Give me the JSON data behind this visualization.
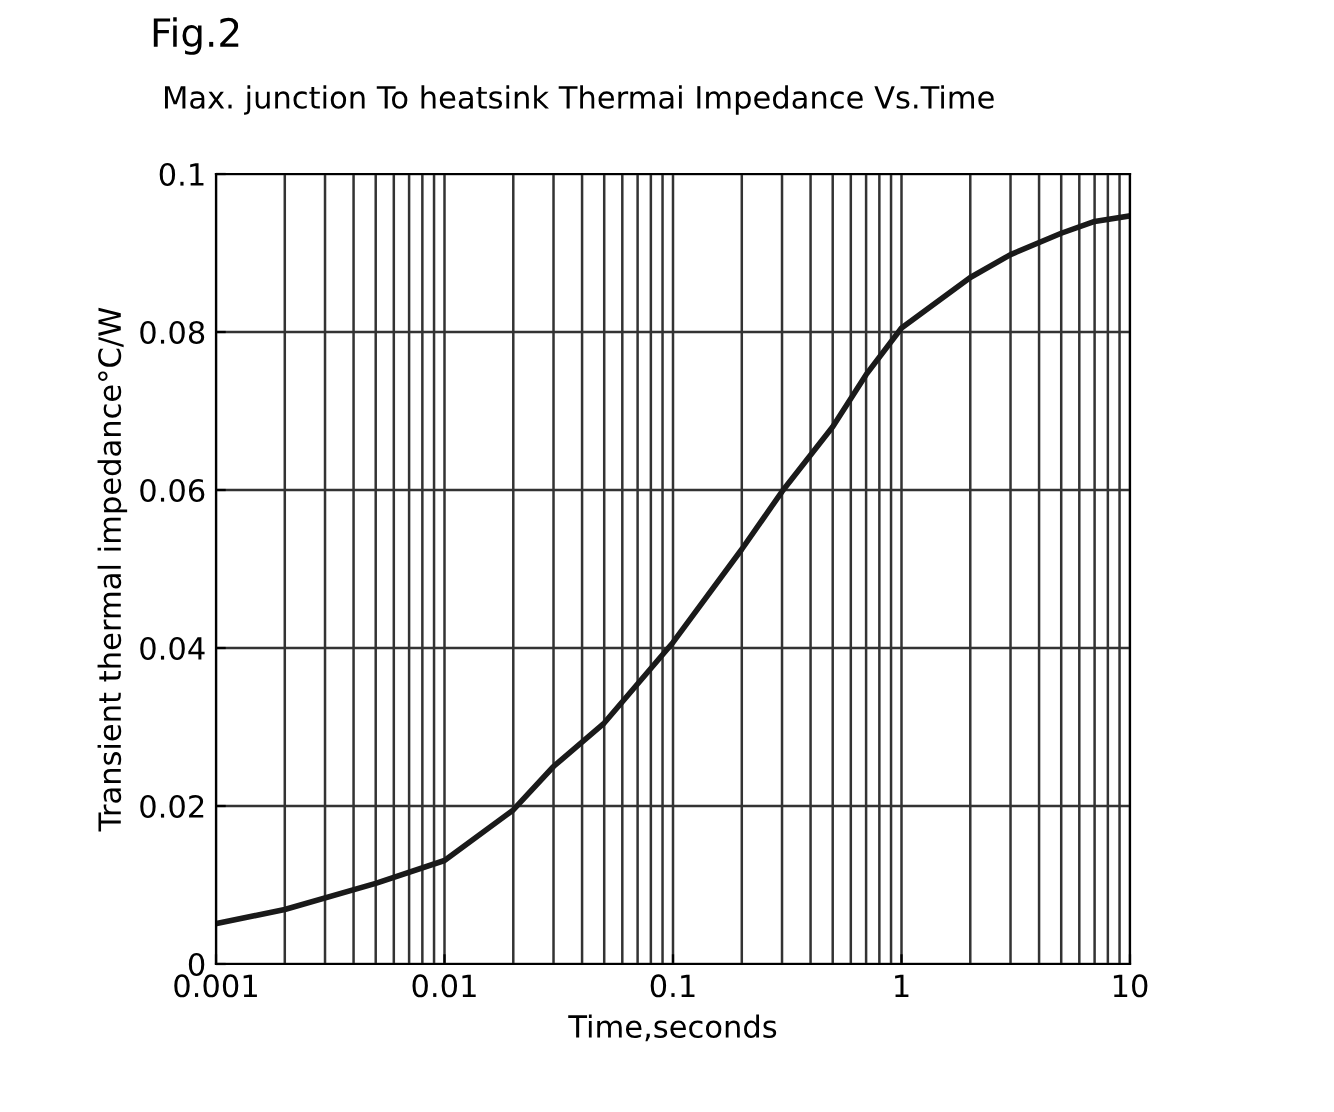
{
  "chart_data": {
    "type": "line",
    "title": "Fig.2",
    "subtitle": "Max. junction To heatsink Thermai Impedance Vs.Time",
    "xlabel": "Time,seconds",
    "ylabel": "Transient thermal impedance°C/W",
    "log": "x",
    "grid": true,
    "marker": "none",
    "line_style": "solid",
    "xlim": [
      0.001,
      10
    ],
    "xticks": [
      {
        "value": 0.001,
        "label": "0.001"
      },
      {
        "value": 0.01,
        "label": "0.01"
      },
      {
        "value": 0.1,
        "label": "0.1"
      },
      {
        "value": 1,
        "label": "1"
      },
      {
        "value": 10,
        "label": "10"
      }
    ],
    "ylim": [
      0,
      0.1
    ],
    "yticks": [
      {
        "value": 0,
        "label": "0"
      },
      {
        "value": 0.02,
        "label": "0.02"
      },
      {
        "value": 0.04,
        "label": "0.04"
      },
      {
        "value": 0.06,
        "label": "0.06"
      },
      {
        "value": 0.08,
        "label": "0.08"
      },
      {
        "value": 0.1,
        "label": "0.1"
      }
    ],
    "x": [
      0.001,
      0.002,
      0.005,
      0.01,
      0.02,
      0.03,
      0.05,
      0.1,
      0.2,
      0.3,
      0.5,
      0.7,
      1,
      2,
      3,
      5,
      7,
      10
    ],
    "series": [
      {
        "color": "#1a1a1a",
        "values": [
          0.0051,
          0.0069,
          0.0102,
          0.0131,
          0.0195,
          0.025,
          0.0305,
          0.0407,
          0.0525,
          0.0598,
          0.068,
          0.0746,
          0.0805,
          0.0869,
          0.0898,
          0.0925,
          0.094,
          0.0947
        ]
      }
    ]
  }
}
